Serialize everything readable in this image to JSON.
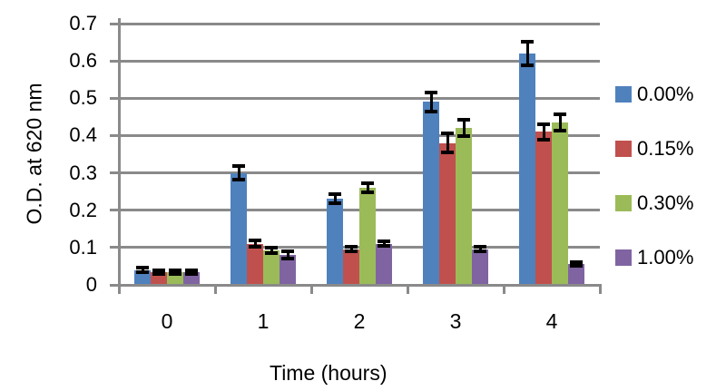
{
  "chart_data": {
    "type": "bar",
    "title": "",
    "xlabel": "Time (hours)",
    "ylabel": "O.D. at 620 nm",
    "categories": [
      "0",
      "1",
      "2",
      "3",
      "4"
    ],
    "series": [
      {
        "name": "0.00%",
        "color": "#4F81BD",
        "values": [
          0.04,
          0.3,
          0.23,
          0.49,
          0.62
        ],
        "errors": [
          0.005,
          0.018,
          0.012,
          0.025,
          0.032
        ]
      },
      {
        "name": "0.15%",
        "color": "#C0504D",
        "values": [
          0.035,
          0.11,
          0.095,
          0.38,
          0.41
        ],
        "errors": [
          0.005,
          0.008,
          0.006,
          0.025,
          0.02
        ]
      },
      {
        "name": "0.30%",
        "color": "#9BBB59",
        "values": [
          0.035,
          0.092,
          0.26,
          0.42,
          0.435
        ],
        "errors": [
          0.005,
          0.008,
          0.013,
          0.022,
          0.023
        ]
      },
      {
        "name": "1.00%",
        "color": "#8064A2",
        "values": [
          0.035,
          0.081,
          0.11,
          0.095,
          0.055
        ],
        "errors": [
          0.005,
          0.01,
          0.006,
          0.006,
          0.005
        ]
      }
    ],
    "ylim": [
      0,
      0.7
    ],
    "ytick_step": 0.1,
    "ytick_labels": [
      "0",
      "0.1",
      "0.2",
      "0.3",
      "0.4",
      "0.5",
      "0.6",
      "0.7"
    ],
    "grid": true,
    "legend_position": "right",
    "error_bars": true
  },
  "colors": {
    "gridline": "#8A8A8A",
    "axis": "#8A8A8A",
    "error_bar": "#000000",
    "text": "#000000",
    "background": "#FFFFFF"
  }
}
